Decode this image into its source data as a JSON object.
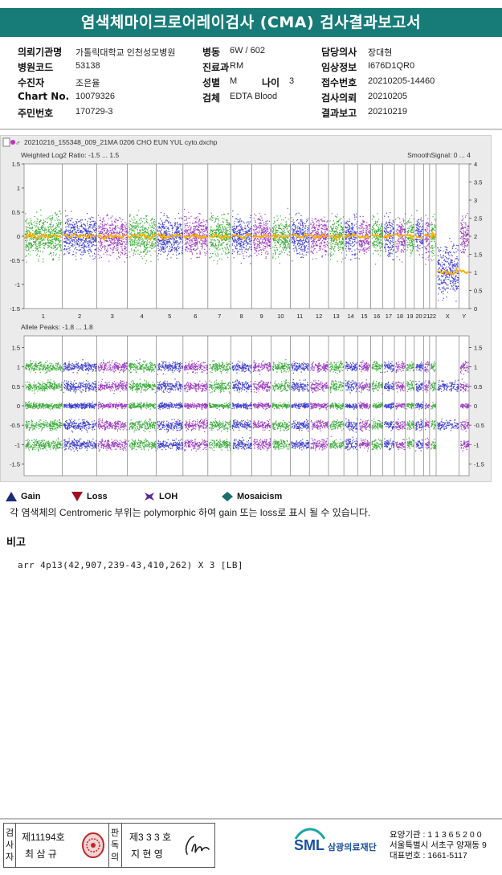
{
  "title": "염색체마이크로어레이검사 (CMA) 검사결과보고서",
  "info": {
    "rows": [
      [
        {
          "l": "의뢰기관명",
          "v": "가톨릭대학교 인천성모병원"
        },
        {
          "l": "병동",
          "v": "6W / 602"
        },
        {
          "l": "담당의사",
          "v": "장대현"
        }
      ],
      [
        {
          "l": "병원코드",
          "v": "53138"
        },
        {
          "l": "진료과",
          "v": "RM"
        },
        {
          "l": "임상정보",
          "v": "I676D1QR0"
        }
      ],
      [
        {
          "l": "수진자",
          "v": "조은율"
        },
        {
          "l": "성별",
          "v": "M"
        },
        {
          "l": "접수번호",
          "v": "20210205-14460"
        }
      ],
      [
        {
          "l": "Chart No.",
          "v": "10079326"
        },
        {
          "l": "검체",
          "v": "EDTA Blood"
        },
        {
          "l": "검사의뢰",
          "v": "20210205"
        }
      ],
      [
        {
          "l": "주민번호",
          "v": "170729-3"
        },
        {
          "l": "",
          "v": ""
        },
        {
          "l": "결과보고",
          "v": "20210219"
        }
      ]
    ],
    "age_label": "나이",
    "age_value": "3"
  },
  "chart_header": {
    "filename": "20210216_155348_009_21MA 0206 CHO EUN YUL cyto.dxchp",
    "top_left_label": "Weighted Log2 Ratio: -1.5 ... 1.5",
    "top_right_label": "SmoothSignal: 0 ... 4",
    "bottom_left_label": "Allele Peaks: -1.8 ... 1.8"
  },
  "chart_data": [
    {
      "type": "scatter",
      "title": "Weighted Log2 Ratio",
      "ylim": [
        -1.5,
        1.5
      ],
      "y2lim": [
        0,
        4
      ],
      "yticks": [
        "1.5",
        "1",
        "0.5",
        "0",
        "-0.5",
        "-1",
        "-1.5"
      ],
      "y2ticks": [
        "4",
        "3.5",
        "3",
        "2.5",
        "2",
        "1.5",
        "1",
        "0.5",
        "0"
      ],
      "categories": [
        "1",
        "2",
        "3",
        "4",
        "5",
        "6",
        "7",
        "8",
        "9",
        "10",
        "11",
        "12",
        "13",
        "14",
        "15",
        "16",
        "17",
        "18",
        "19",
        "20",
        "21",
        "22",
        "X",
        "Y"
      ],
      "series": [
        {
          "name": "SmoothSignal",
          "values": [
            2,
            2,
            2,
            2,
            2,
            2,
            2,
            2,
            2,
            2,
            2,
            2,
            2,
            2,
            2,
            2,
            2,
            2,
            2,
            2,
            2,
            2,
            1,
            1
          ]
        }
      ],
      "colors": [
        "#1a9e1a",
        "#1c1cc8",
        "#8a1ab4"
      ],
      "smooth_color": "#ffb000"
    },
    {
      "type": "scatter",
      "title": "Allele Peaks",
      "ylim": [
        -1.8,
        1.8
      ],
      "yticks": [
        "1.5",
        "1",
        "0.5",
        "0",
        "-0.5",
        "-1",
        "-1.5"
      ],
      "y2ticks": [
        "1.5",
        "1",
        "0.5",
        "0",
        "-0.5",
        "-1",
        "-1.5"
      ],
      "categories": [
        "1",
        "2",
        "3",
        "4",
        "5",
        "6",
        "7",
        "8",
        "9",
        "10",
        "11",
        "12",
        "13",
        "14",
        "15",
        "16",
        "17",
        "18",
        "19",
        "20",
        "21",
        "22",
        "X",
        "Y"
      ],
      "series": [
        {
          "name": "Allele peak bands",
          "values": [
            1,
            0.5,
            0,
            -0.5,
            -1
          ]
        }
      ]
    }
  ],
  "legend": [
    {
      "icon": "gain-triangle-icon",
      "label": "Gain",
      "color": "#1a2b7a"
    },
    {
      "icon": "loss-triangle-icon",
      "label": "Loss",
      "color": "#a01020"
    },
    {
      "icon": "loh-icon",
      "label": "LOH",
      "color": "#5a2a9a"
    },
    {
      "icon": "mosaicism-diamond-icon",
      "label": "Mosaicism",
      "color": "#1a6e6e"
    }
  ],
  "note": "각 염색체의 Centromeric 부위는 polymorphic 하여 gain 또는 loss로 표시 될 수 있습니다.",
  "remark_title": "비고",
  "remark_text": "arr 4p13(42,907,239-43,410,262) X 3 [LB]",
  "footer": {
    "col1_title": "검사자",
    "col1_no": "제11194호",
    "col1_name": "최 삼 규",
    "col2_title": "판독의",
    "col2_no": "제3 3 3 호",
    "col2_name": "지 현 영",
    "logo_text": "SML",
    "org_name": "삼광의료재단",
    "org_lines": [
      "요양기관 : 1 1 3 6 5 2 0 0",
      "서울특별시 서초구 양재동 9",
      "대표번호 : 1661-5117"
    ]
  }
}
